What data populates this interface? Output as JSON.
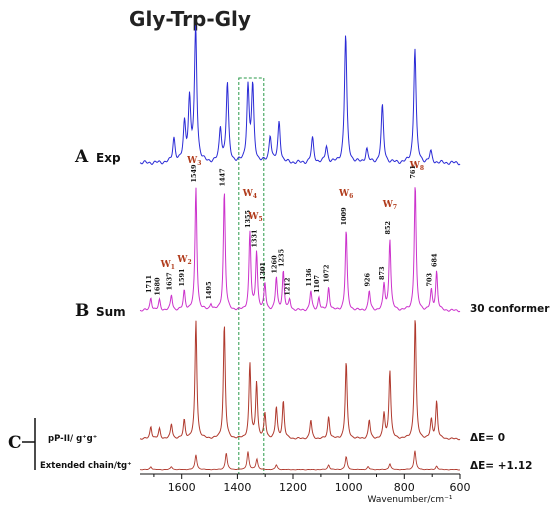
{
  "chart_data": {
    "type": "line",
    "title": "Gly-Trp-Gly",
    "xlabel": "Wavenumber/cm⁻¹",
    "xlim": [
      1750,
      600
    ],
    "x_ticks": [
      1600,
      1400,
      1200,
      1000,
      800,
      600
    ],
    "highlight_region": [
      1395,
      1305
    ],
    "panels": [
      {
        "letter": "A",
        "name": "Exp",
        "color": "#2b2bd6",
        "peaks": [
          {
            "x": 1628,
            "h": 0.18
          },
          {
            "x": 1590,
            "h": 0.28
          },
          {
            "x": 1572,
            "h": 0.45
          },
          {
            "x": 1550,
            "h": 1.0
          },
          {
            "x": 1461,
            "h": 0.25
          },
          {
            "x": 1436,
            "h": 0.58
          },
          {
            "x": 1362,
            "h": 0.55
          },
          {
            "x": 1345,
            "h": 0.55
          },
          {
            "x": 1282,
            "h": 0.2
          },
          {
            "x": 1250,
            "h": 0.3
          },
          {
            "x": 1130,
            "h": 0.18
          },
          {
            "x": 1080,
            "h": 0.12
          },
          {
            "x": 1011,
            "h": 0.95
          },
          {
            "x": 935,
            "h": 0.1
          },
          {
            "x": 879,
            "h": 0.42
          },
          {
            "x": 762,
            "h": 0.85
          },
          {
            "x": 705,
            "h": 0.08
          }
        ],
        "labels": [
          {
            "x": 1555,
            "w": "W",
            "sub": "3"
          },
          {
            "x": 755,
            "w": "W",
            "sub": "8"
          }
        ]
      },
      {
        "letter": "B",
        "name": "Sum",
        "note": "30 conformers",
        "color": "#cc33cc",
        "peaks": [
          {
            "x": 1711,
            "h": 0.1,
            "label": "1711"
          },
          {
            "x": 1680,
            "h": 0.08,
            "label": "1680"
          },
          {
            "x": 1637,
            "h": 0.12,
            "label": "1637"
          },
          {
            "x": 1591,
            "h": 0.15,
            "label": "1591"
          },
          {
            "x": 1549,
            "h": 0.95,
            "label": "1549"
          },
          {
            "x": 1495,
            "h": 0.05,
            "label": "1495"
          },
          {
            "x": 1447,
            "h": 0.92,
            "label": "1447"
          },
          {
            "x": 1355,
            "h": 0.6,
            "label": "1355"
          },
          {
            "x": 1331,
            "h": 0.45,
            "label": "1331"
          },
          {
            "x": 1301,
            "h": 0.2,
            "label": "1301"
          },
          {
            "x": 1260,
            "h": 0.25,
            "label": "1260"
          },
          {
            "x": 1235,
            "h": 0.3,
            "label": "1235"
          },
          {
            "x": 1212,
            "h": 0.08,
            "label": "1212"
          },
          {
            "x": 1136,
            "h": 0.15,
            "label": "1136"
          },
          {
            "x": 1107,
            "h": 0.1,
            "label": "1107"
          },
          {
            "x": 1072,
            "h": 0.18,
            "label": "1072"
          },
          {
            "x": 1009,
            "h": 0.62,
            "label": "1009"
          },
          {
            "x": 926,
            "h": 0.15,
            "label": "926"
          },
          {
            "x": 873,
            "h": 0.2,
            "label": "873"
          },
          {
            "x": 852,
            "h": 0.55,
            "label": "852"
          },
          {
            "x": 761,
            "h": 0.98,
            "label": "761"
          },
          {
            "x": 703,
            "h": 0.15,
            "label": "703"
          },
          {
            "x": 684,
            "h": 0.3,
            "label": "684"
          }
        ],
        "labels": [
          {
            "x": 1650,
            "w": "W",
            "sub": "1"
          },
          {
            "x": 1590,
            "w": "W",
            "sub": "2"
          },
          {
            "x": 1355,
            "w": "W",
            "sub": "4"
          },
          {
            "x": 1335,
            "w": "W",
            "sub": "5"
          },
          {
            "x": 1009,
            "w": "W",
            "sub": "6"
          },
          {
            "x": 852,
            "w": "W",
            "sub": "7"
          }
        ]
      },
      {
        "letter": "C",
        "color": "#b03a2e",
        "subpanels": [
          {
            "label": "pP-II/ g⁺g⁺",
            "note": "ΔE= 0",
            "peaks": [
              {
                "x": 1711,
                "h": 0.1
              },
              {
                "x": 1680,
                "h": 0.08
              },
              {
                "x": 1637,
                "h": 0.12
              },
              {
                "x": 1591,
                "h": 0.15
              },
              {
                "x": 1549,
                "h": 0.95
              },
              {
                "x": 1447,
                "h": 0.92
              },
              {
                "x": 1355,
                "h": 0.6
              },
              {
                "x": 1331,
                "h": 0.45
              },
              {
                "x": 1301,
                "h": 0.2
              },
              {
                "x": 1260,
                "h": 0.25
              },
              {
                "x": 1235,
                "h": 0.3
              },
              {
                "x": 1136,
                "h": 0.15
              },
              {
                "x": 1072,
                "h": 0.18
              },
              {
                "x": 1009,
                "h": 0.62
              },
              {
                "x": 926,
                "h": 0.15
              },
              {
                "x": 873,
                "h": 0.2
              },
              {
                "x": 852,
                "h": 0.55
              },
              {
                "x": 761,
                "h": 0.98
              },
              {
                "x": 703,
                "h": 0.15
              },
              {
                "x": 684,
                "h": 0.3
              }
            ]
          },
          {
            "label": "Extended chain/tg⁺",
            "note": "ΔE= +1.12",
            "peaks": [
              {
                "x": 1711,
                "h": 0.05
              },
              {
                "x": 1637,
                "h": 0.05
              },
              {
                "x": 1549,
                "h": 0.25
              },
              {
                "x": 1440,
                "h": 0.28
              },
              {
                "x": 1362,
                "h": 0.3
              },
              {
                "x": 1330,
                "h": 0.18
              },
              {
                "x": 1260,
                "h": 0.08
              },
              {
                "x": 1072,
                "h": 0.08
              },
              {
                "x": 1009,
                "h": 0.22
              },
              {
                "x": 930,
                "h": 0.05
              },
              {
                "x": 852,
                "h": 0.1
              },
              {
                "x": 762,
                "h": 0.32
              },
              {
                "x": 684,
                "h": 0.06
              }
            ]
          }
        ]
      }
    ]
  }
}
